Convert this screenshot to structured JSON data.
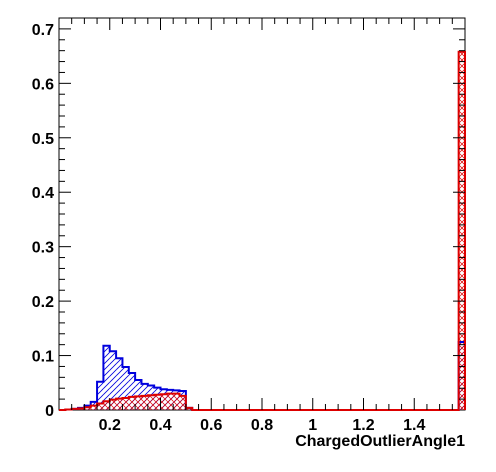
{
  "chart_data": {
    "type": "histogram",
    "xlabel": "ChargedOutlierAngle1",
    "ylabel": "",
    "title": "",
    "xlim": [
      0,
      1.6
    ],
    "ylim": [
      0,
      0.72
    ],
    "grid": false,
    "x_ticks": [
      0.2,
      0.4,
      0.6,
      0.8,
      1,
      1.2,
      1.4
    ],
    "x_tick_labels": [
      "0.2",
      "0.4",
      "0.6",
      "0.8",
      "1",
      "1.2",
      "1.4"
    ],
    "y_ticks": [
      0,
      0.1,
      0.2,
      0.3,
      0.4,
      0.5,
      0.6,
      0.7
    ],
    "y_tick_labels": [
      "0",
      "0.1",
      "0.2",
      "0.3",
      "0.4",
      "0.5",
      "0.6",
      "0.7"
    ],
    "bin_edges": [
      0,
      0.025,
      0.05,
      0.075,
      0.1,
      0.125,
      0.15,
      0.175,
      0.2,
      0.225,
      0.25,
      0.275,
      0.3,
      0.325,
      0.35,
      0.375,
      0.4,
      0.425,
      0.45,
      0.475,
      0.5,
      0.525,
      0.55,
      0.575,
      0.6,
      0.625,
      0.65,
      0.675,
      0.7,
      0.725,
      0.75,
      0.775,
      0.8,
      0.825,
      0.85,
      0.875,
      0.9,
      0.925,
      0.95,
      0.975,
      1.0,
      1.025,
      1.05,
      1.075,
      1.1,
      1.125,
      1.15,
      1.175,
      1.2,
      1.225,
      1.25,
      1.275,
      1.3,
      1.325,
      1.35,
      1.375,
      1.4,
      1.425,
      1.45,
      1.475,
      1.5,
      1.525,
      1.55,
      1.575,
      1.6
    ],
    "series": [
      {
        "color": "#0000dd",
        "hatch": "diagonal",
        "values": [
          0,
          0.001,
          0.002,
          0.004,
          0.008,
          0.015,
          0.052,
          0.118,
          0.108,
          0.095,
          0.079,
          0.068,
          0.055,
          0.048,
          0.045,
          0.041,
          0.038,
          0.037,
          0.036,
          0.035,
          0.004,
          0,
          0,
          0,
          0,
          0,
          0,
          0,
          0,
          0,
          0,
          0,
          0,
          0,
          0,
          0,
          0,
          0,
          0,
          0,
          0,
          0,
          0,
          0,
          0,
          0,
          0,
          0,
          0,
          0,
          0,
          0,
          0,
          0,
          0,
          0,
          0,
          0,
          0,
          0,
          0,
          0,
          0,
          0.125
        ]
      },
      {
        "color": "#dd0000",
        "hatch": "crosshatch",
        "values": [
          0,
          0.001,
          0.002,
          0.003,
          0.005,
          0.008,
          0.012,
          0.016,
          0.019,
          0.021,
          0.022,
          0.024,
          0.025,
          0.026,
          0.027,
          0.028,
          0.029,
          0.03,
          0.03,
          0.026,
          0.004,
          0,
          0,
          0,
          0,
          0,
          0,
          0,
          0,
          0,
          0,
          0,
          0,
          0,
          0,
          0,
          0,
          0,
          0,
          0,
          0,
          0,
          0,
          0,
          0,
          0,
          0,
          0,
          0,
          0,
          0,
          0,
          0,
          0,
          0,
          0,
          0,
          0,
          0,
          0,
          0,
          0,
          0,
          0.658
        ]
      }
    ]
  }
}
